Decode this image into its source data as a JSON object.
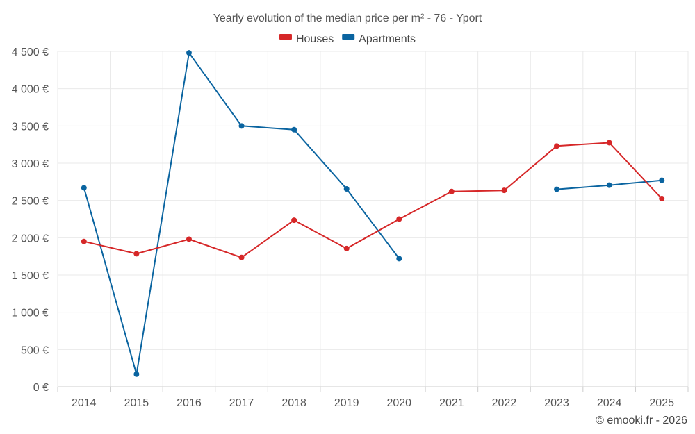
{
  "chart_data": {
    "type": "line",
    "title": "Yearly evolution of the median price per m² - 76 - Yport",
    "categories": [
      "2014",
      "2015",
      "2016",
      "2017",
      "2018",
      "2019",
      "2020",
      "2021",
      "2022",
      "2023",
      "2024",
      "2025"
    ],
    "y_tick_labels": [
      "0 €",
      "500 €",
      "1 000 €",
      "1 500 €",
      "2 000 €",
      "2 500 €",
      "3 000 €",
      "3 500 €",
      "4 000 €",
      "4 500 €"
    ],
    "y_tick_values": [
      0,
      500,
      1000,
      1500,
      2000,
      2500,
      3000,
      3500,
      4000,
      4500
    ],
    "ylim": [
      0,
      4500
    ],
    "grid": true,
    "legend_position": "top-center",
    "series": [
      {
        "name": "Houses",
        "color": "#d62728",
        "values": [
          1950,
          1785,
          1980,
          1735,
          2235,
          1855,
          2250,
          2620,
          2635,
          3230,
          3275,
          2525
        ]
      },
      {
        "name": "Apartments",
        "color": "#0a64a0",
        "values": [
          2670,
          170,
          4480,
          3500,
          3450,
          2655,
          1720,
          null,
          null,
          2650,
          2705,
          2770
        ]
      }
    ]
  },
  "credit": "© emooki.fr - 2026"
}
